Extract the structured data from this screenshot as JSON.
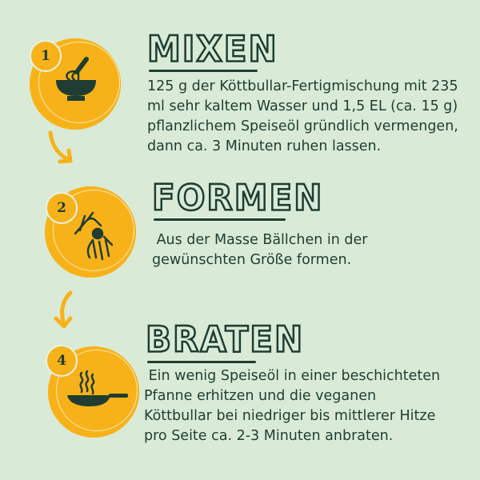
{
  "colors": {
    "background": "#d9ebd7",
    "accent": "#f8b219",
    "ink": "#1f3d32"
  },
  "steps": [
    {
      "badge": "1",
      "icon": "whisk-bowl-icon",
      "title": "MIXEN",
      "lines": [
        "125 g der Köttbullar-Fertigmischung mit 235",
        "ml sehr kaltem Wasser und 1,5 EL (ca. 15 g)",
        "pflanzlichem Speiseöl gründlich vermengen,",
        "dann ca. 3 Minuten ruhen lassen."
      ]
    },
    {
      "badge": "2",
      "icon": "hands-rolling-icon",
      "title": "FORMEN",
      "lines": [
        " Aus der Masse Bällchen in der",
        "gewünschten Größe formen."
      ]
    },
    {
      "badge": "4",
      "icon": "frying-pan-icon",
      "title": "BRATEN",
      "lines": [
        " Ein wenig Speiseöl in einer beschichteten",
        "Pfanne erhitzen und die veganen",
        "Köttbullar bei niedriger bis mittlerer Hitze",
        "pro Seite ca. 2-3 Minuten anbraten."
      ]
    }
  ]
}
